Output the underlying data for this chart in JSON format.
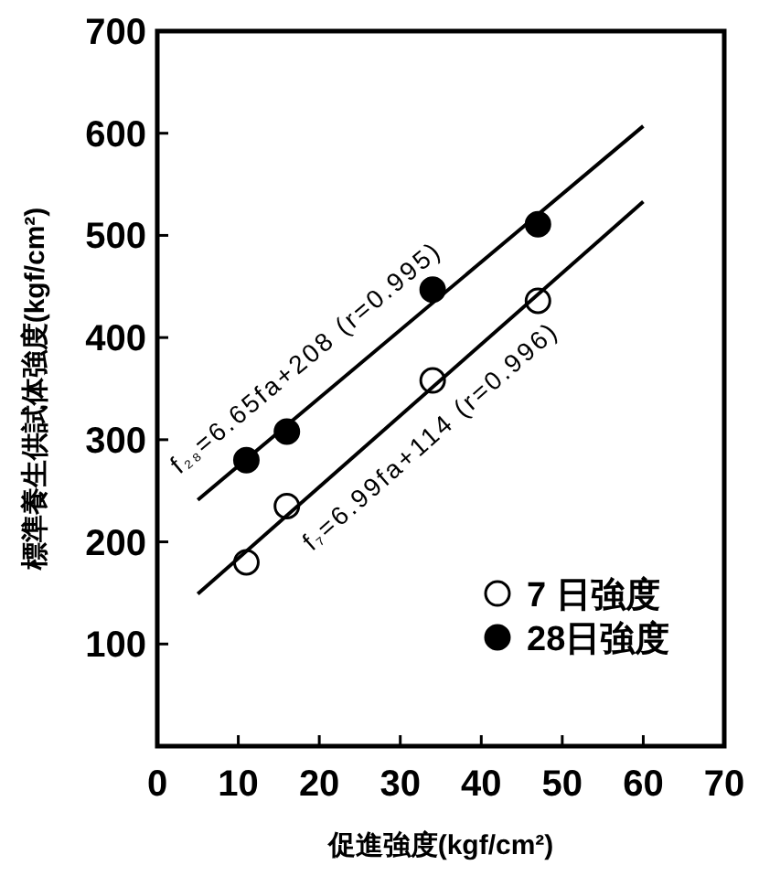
{
  "chart_data": {
    "type": "scatter",
    "xlabel": "促進強度(kgf/cm²)",
    "ylabel": "標準養生供試体強度(kgf/cm²)",
    "xlim": [
      0,
      70
    ],
    "xticks": [
      0,
      10,
      20,
      30,
      40,
      50,
      60,
      70
    ],
    "ylim": [
      0,
      700
    ],
    "yticks": [
      100,
      200,
      300,
      400,
      500,
      600,
      700
    ],
    "grid": false,
    "legend": "bottom right",
    "series": [
      {
        "name": "7 日強度",
        "marker": "circle",
        "color": "#ffffff",
        "x": [
          11,
          16,
          34,
          47
        ],
        "values": [
          180,
          235,
          358,
          436
        ]
      },
      {
        "name": "28日強度",
        "marker": "circle",
        "color": "#000000",
        "x": [
          11,
          16,
          34,
          47
        ],
        "values": [
          280,
          308,
          447,
          511
        ]
      },
      {
        "type": "line",
        "marker": "none",
        "color": "#000000",
        "x": [
          5,
          60
        ],
        "values": [
          241,
          607
        ]
      },
      {
        "type": "line",
        "marker": "none",
        "color": "#000000",
        "x": [
          5,
          60
        ],
        "values": [
          149,
          533
        ]
      }
    ],
    "annotations": [
      "f₂₈=6.65fa+208 (r=0.995)",
      "f₇=6.99fa+114 (r=0.996)"
    ]
  }
}
